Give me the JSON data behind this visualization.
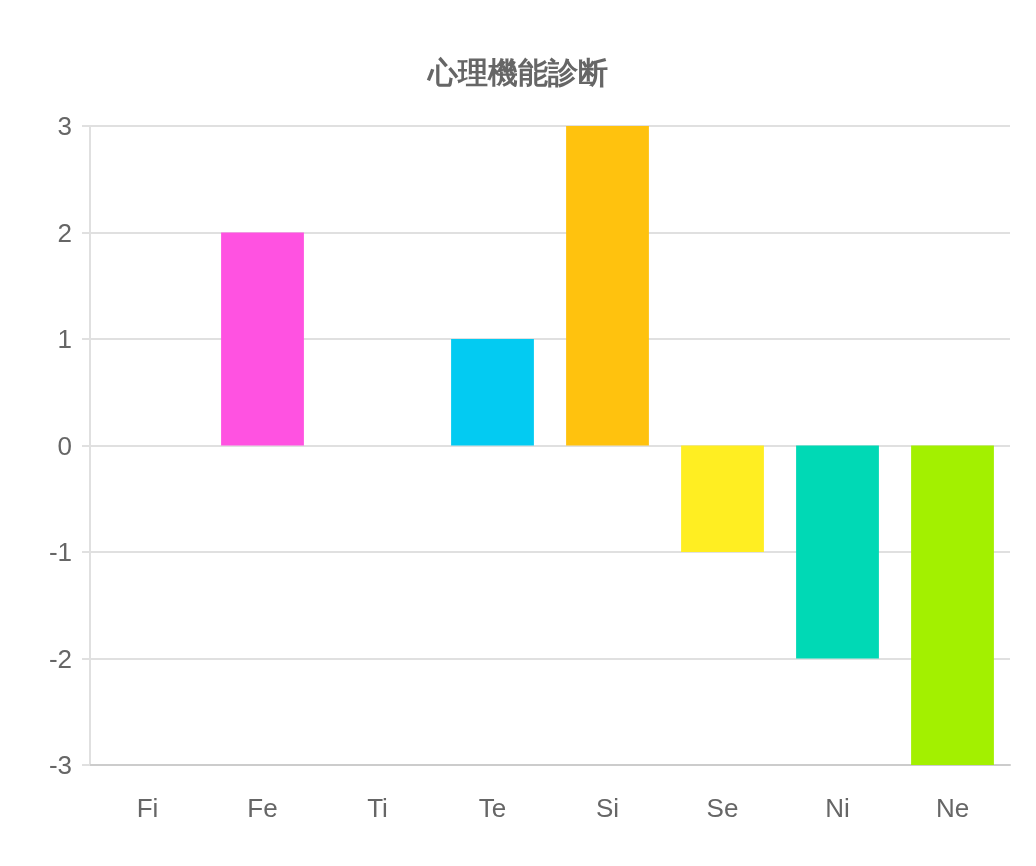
{
  "chart_data": {
    "type": "bar",
    "title": "心理機能診断",
    "categories": [
      "Fi",
      "Fe",
      "Ti",
      "Te",
      "Si",
      "Se",
      "Ni",
      "Ne"
    ],
    "values": [
      0,
      2,
      0,
      1,
      3,
      -1,
      -2,
      -3
    ],
    "colors": [
      null,
      "#ff52e1",
      null,
      "#03cbf2",
      "#ffc20e",
      "#ffee22",
      "#00d9b5",
      "#a3f000"
    ],
    "ylim": [
      -3,
      3
    ],
    "yticks": [
      -3,
      -2,
      -1,
      0,
      1,
      2,
      3
    ],
    "grid": "y"
  }
}
